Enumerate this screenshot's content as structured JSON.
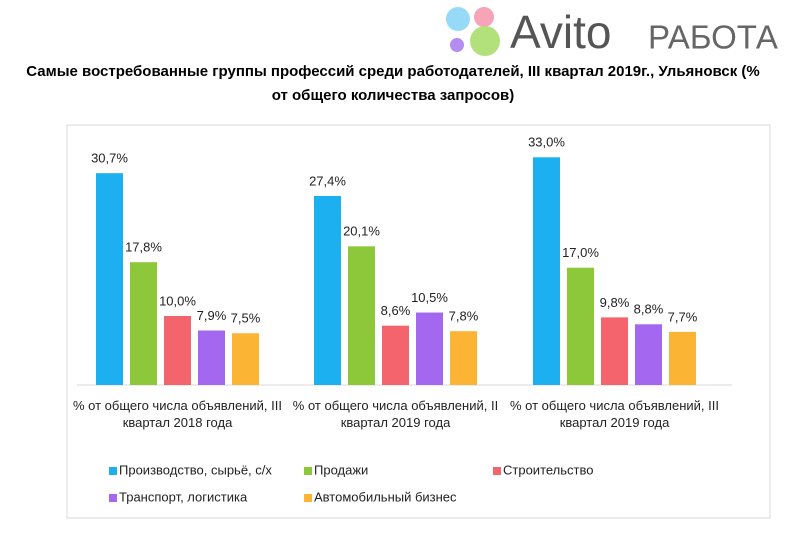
{
  "logo": {
    "brand": "Avito",
    "product": "РАБОТА"
  },
  "chart_data": {
    "type": "bar",
    "title": "Самые востребованные группы профессий среди работодателей, III квартал 2019г., Ульяновск (% от общего количества запросов)",
    "categories": [
      "% от общего числа объявлений, III квартал 2018 года",
      "% от общего числа объявлений, II квартал 2019 года",
      "% от общего числа объявлений, III квартал 2019 года"
    ],
    "series": [
      {
        "name": "Производство, сырьё, с/х",
        "color": "#1cb0f0",
        "values": [
          30.7,
          27.4,
          33.0
        ],
        "value_labels": [
          "30,7%",
          "27,4%",
          "33,0%"
        ]
      },
      {
        "name": "Продажи",
        "color": "#8cc83a",
        "values": [
          17.8,
          20.1,
          17.0
        ],
        "value_labels": [
          "17,8%",
          "20,1%",
          "17,0%"
        ]
      },
      {
        "name": "Строительство",
        "color": "#f3646c",
        "values": [
          10.0,
          8.6,
          9.8
        ],
        "value_labels": [
          "10,0%",
          "8,6%",
          "9,8%"
        ]
      },
      {
        "name": "Транспорт, логистика",
        "color": "#a467f0",
        "values": [
          7.9,
          10.5,
          8.8
        ],
        "value_labels": [
          "7,9%",
          "10,5%",
          "8,8%"
        ]
      },
      {
        "name": "Автомобильный бизнес",
        "color": "#fbb433",
        "values": [
          7.5,
          7.8,
          7.7
        ],
        "value_labels": [
          "7,5%",
          "7,8%",
          "7,7%"
        ]
      }
    ],
    "legend": "bottom"
  }
}
